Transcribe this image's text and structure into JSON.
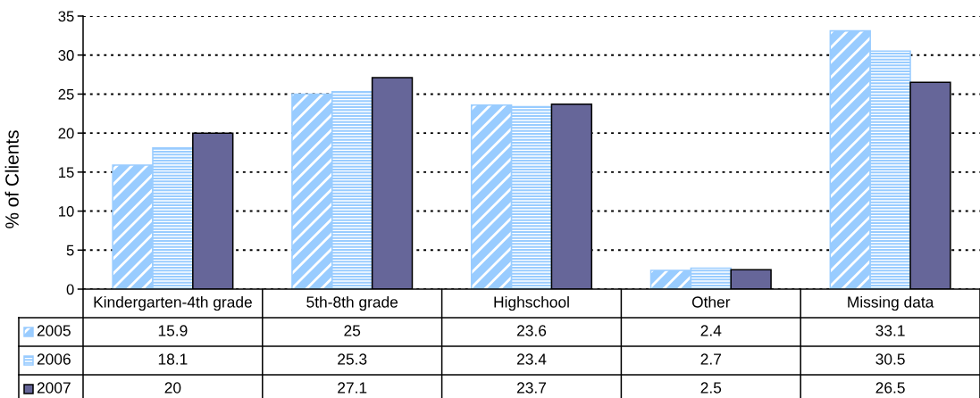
{
  "chart_data": {
    "type": "bar",
    "ylabel": "% of Clients",
    "categories": [
      "Kindergarten-4th grade",
      "5th-8th grade",
      "Highschool",
      "Other",
      "Missing data"
    ],
    "series": [
      {
        "name": "2005",
        "color": "#99ccff",
        "values": [
          15.9,
          25,
          23.6,
          2.4,
          33.1
        ]
      },
      {
        "name": "2006",
        "color": "#99ccff",
        "values": [
          18.1,
          25.3,
          23.4,
          2.7,
          30.5
        ]
      },
      {
        "name": "2007",
        "color": "#666699",
        "values": [
          20,
          27.1,
          23.7,
          2.5,
          26.5
        ]
      }
    ],
    "ylim": [
      0,
      35
    ],
    "yticks": [
      0,
      5,
      10,
      15,
      20,
      25,
      30,
      35
    ],
    "grid": "y",
    "legend": "bottom left",
    "data_labels": true
  }
}
